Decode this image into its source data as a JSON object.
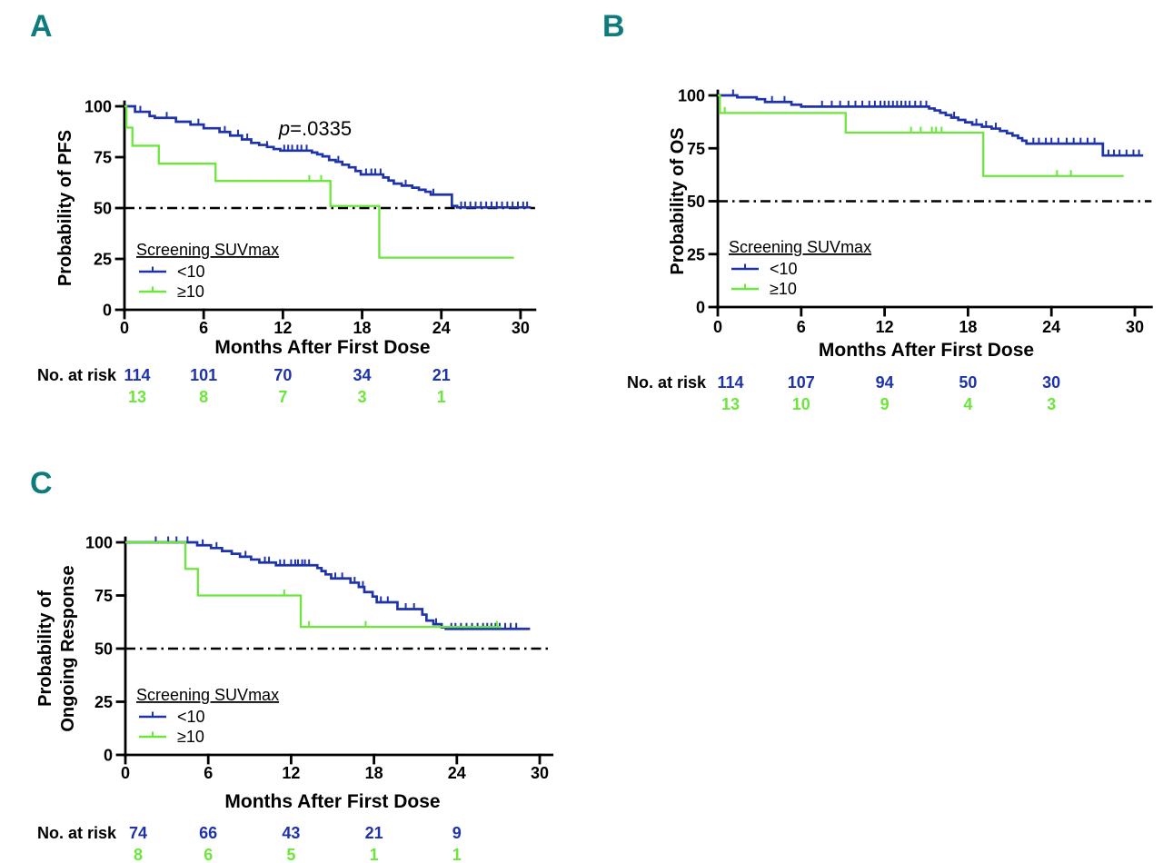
{
  "colors": {
    "blue": "#1e32aa",
    "green": "#6be63a",
    "teal": "#0e7b7d",
    "black": "#000000"
  },
  "chart_data": [
    {
      "panel_label": "A",
      "type": "line",
      "km_style": true,
      "ylabel_lines": [
        "Probability of PFS"
      ],
      "xlabel": "Months After First Dose",
      "xticks": [
        0,
        6,
        12,
        18,
        24,
        30
      ],
      "yticks": [
        0,
        25,
        50,
        75,
        100
      ],
      "xlim": [
        0,
        31
      ],
      "ylim": [
        0,
        100
      ],
      "reference_line_y": 50,
      "grid": false,
      "annotation": {
        "italic": "p",
        "rest": "=.0335"
      },
      "legend": {
        "title": "Screening SUVmax",
        "items": [
          {
            "label": "<10",
            "color_key": "blue"
          },
          {
            "label": "≥10",
            "color_key": "green"
          }
        ]
      },
      "series": [
        {
          "name": "<10",
          "color_key": "blue",
          "steps": [
            [
              0,
              100
            ],
            [
              0.8,
              97.3
            ],
            [
              1.9,
              95.2
            ],
            [
              2.3,
              94.3
            ],
            [
              3.9,
              92.4
            ],
            [
              5.0,
              91.0
            ],
            [
              6.0,
              89.2
            ],
            [
              7.2,
              87.4
            ],
            [
              8.0,
              85.6
            ],
            [
              8.9,
              83.7
            ],
            [
              9.6,
              82.0
            ],
            [
              10.2,
              81.0
            ],
            [
              10.8,
              80.0
            ],
            [
              11.3,
              79.0
            ],
            [
              11.8,
              78.2
            ],
            [
              14.2,
              77.3
            ],
            [
              14.6,
              76.4
            ],
            [
              15.0,
              75.4
            ],
            [
              15.5,
              73.6
            ],
            [
              16.0,
              72.7
            ],
            [
              16.5,
              71.3
            ],
            [
              17.0,
              70.0
            ],
            [
              17.5,
              68.2
            ],
            [
              17.9,
              66.5
            ],
            [
              19.6,
              65.0
            ],
            [
              20.0,
              63.5
            ],
            [
              20.4,
              62.0
            ],
            [
              21.0,
              61.0
            ],
            [
              21.8,
              60.0
            ],
            [
              22.3,
              59.0
            ],
            [
              22.8,
              58.0
            ],
            [
              23.2,
              56.6
            ],
            [
              24.8,
              51.0
            ],
            [
              25.2,
              50.3
            ]
          ],
          "end": 30.8,
          "censors": [
            1.2,
            3.2,
            5.6,
            7.6,
            8.6,
            9.3,
            10.8,
            12.1,
            12.4,
            12.7,
            13.1,
            13.4,
            13.8,
            16.2,
            18.3,
            18.7,
            19.0,
            19.4,
            21.3,
            23.4,
            25.5,
            25.8,
            26.2,
            26.6,
            27.0,
            27.4,
            27.8,
            28.2,
            28.6,
            29.0,
            29.4,
            29.8,
            30.2,
            30.5
          ]
        },
        {
          "name": "≥10",
          "color_key": "green",
          "steps": [
            [
              0,
              100
            ],
            [
              0.15,
              89.5
            ],
            [
              0.6,
              80.6
            ],
            [
              2.6,
              71.8
            ],
            [
              6.9,
              63.3
            ],
            [
              15.6,
              51.0
            ],
            [
              19.3,
              25.6
            ]
          ],
          "end": 29.5,
          "censors": [
            14.0,
            14.9
          ]
        }
      ],
      "risk_table": {
        "label": "No. at risk",
        "times": [
          0,
          6,
          12,
          18,
          24
        ],
        "rows": [
          {
            "color_key": "blue",
            "values": [
              "114",
              "101",
              "70",
              "34",
              "21"
            ]
          },
          {
            "color_key": "green",
            "values": [
              "13",
              "8",
              "7",
              "3",
              "1"
            ]
          }
        ]
      }
    },
    {
      "panel_label": "B",
      "type": "line",
      "km_style": true,
      "ylabel_lines": [
        "Probability of OS"
      ],
      "xlabel": "Months After First Dose",
      "xticks": [
        0,
        6,
        12,
        18,
        24,
        30
      ],
      "yticks": [
        0,
        25,
        50,
        75,
        100
      ],
      "xlim": [
        0,
        31
      ],
      "ylim": [
        0,
        100
      ],
      "reference_line_y": 50,
      "grid": false,
      "legend": {
        "title": "Screening SUVmax",
        "items": [
          {
            "label": "<10",
            "color_key": "blue"
          },
          {
            "label": "≥10",
            "color_key": "green"
          }
        ]
      },
      "series": [
        {
          "name": "<10",
          "color_key": "blue",
          "steps": [
            [
              0,
              100
            ],
            [
              1.4,
              99.1
            ],
            [
              2.8,
              98.2
            ],
            [
              3.4,
              96.9
            ],
            [
              5.3,
              95.6
            ],
            [
              6.0,
              94.7
            ],
            [
              15.2,
              93.8
            ],
            [
              15.6,
              92.9
            ],
            [
              16.0,
              91.8
            ],
            [
              16.4,
              90.7
            ],
            [
              16.8,
              89.5
            ],
            [
              17.3,
              88.4
            ],
            [
              17.8,
              87.3
            ],
            [
              18.3,
              86.2
            ],
            [
              19.0,
              85.2
            ],
            [
              19.7,
              84.3
            ],
            [
              20.3,
              83.2
            ],
            [
              20.8,
              82.1
            ],
            [
              21.2,
              81.0
            ],
            [
              21.6,
              79.8
            ],
            [
              21.9,
              78.6
            ],
            [
              22.2,
              77.2
            ],
            [
              27.7,
              71.6
            ]
          ],
          "end": 30.6,
          "censors": [
            1.1,
            3.9,
            4.8,
            7.5,
            8.2,
            8.8,
            9.4,
            9.9,
            10.4,
            10.9,
            11.3,
            11.7,
            12.0,
            12.3,
            12.6,
            12.9,
            13.2,
            13.5,
            13.8,
            14.2,
            14.6,
            15.0,
            17.0,
            18.6,
            19.3,
            20.0,
            22.7,
            23.1,
            23.6,
            24.0,
            24.5,
            25.1,
            25.6,
            26.1,
            26.6,
            27.1,
            28.1,
            28.5,
            28.9,
            29.4,
            29.9,
            30.3
          ]
        },
        {
          "name": "≥10",
          "color_key": "green",
          "steps": [
            [
              0,
              100
            ],
            [
              0.15,
              91.7
            ],
            [
              9.2,
              82.4
            ],
            [
              19.1,
              61.9
            ]
          ],
          "end": 29.2,
          "censors": [
            0.5,
            13.9,
            14.6,
            15.4,
            15.7,
            16.1,
            24.4,
            25.4
          ]
        }
      ],
      "risk_table": {
        "label": "No. at risk",
        "times": [
          0,
          6,
          12,
          18,
          24
        ],
        "rows": [
          {
            "color_key": "blue",
            "values": [
              "114",
              "107",
              "94",
              "50",
              "30"
            ]
          },
          {
            "color_key": "green",
            "values": [
              "13",
              "10",
              "9",
              "4",
              "3"
            ]
          }
        ]
      }
    },
    {
      "panel_label": "C",
      "type": "line",
      "km_style": true,
      "ylabel_lines": [
        "Probability of",
        "Ongoing  Response"
      ],
      "xlabel": "Months After First Dose",
      "xticks": [
        0,
        6,
        12,
        18,
        24,
        30
      ],
      "yticks": [
        0,
        25,
        50,
        75,
        100
      ],
      "xlim": [
        0,
        31
      ],
      "ylim": [
        0,
        100
      ],
      "reference_line_y": 50,
      "grid": false,
      "legend": {
        "title": "Screening SUVmax",
        "items": [
          {
            "label": "<10",
            "color_key": "blue"
          },
          {
            "label": "≥10",
            "color_key": "green"
          }
        ]
      },
      "series": [
        {
          "name": "<10",
          "color_key": "blue",
          "steps": [
            [
              0,
              100
            ],
            [
              5.2,
              98.6
            ],
            [
              6.2,
              97.3
            ],
            [
              7.0,
              95.9
            ],
            [
              7.7,
              94.6
            ],
            [
              8.3,
              93.2
            ],
            [
              9.1,
              91.9
            ],
            [
              9.7,
              90.5
            ],
            [
              10.9,
              89.2
            ],
            [
              13.9,
              87.9
            ],
            [
              14.2,
              86.5
            ],
            [
              14.5,
              84.9
            ],
            [
              14.9,
              83.0
            ],
            [
              16.3,
              81.0
            ],
            [
              16.9,
              79.0
            ],
            [
              17.3,
              76.6
            ],
            [
              17.9,
              74.5
            ],
            [
              18.2,
              71.8
            ],
            [
              19.7,
              68.6
            ],
            [
              21.5,
              66.0
            ],
            [
              21.8,
              63.2
            ],
            [
              22.3,
              61.5
            ],
            [
              22.9,
              60.0
            ],
            [
              23.2,
              59.3
            ]
          ],
          "end": 29.3,
          "censors": [
            2.2,
            3.1,
            3.7,
            4.5,
            5.6,
            6.6,
            8.7,
            10.1,
            10.4,
            11.2,
            11.5,
            12.0,
            12.3,
            12.5,
            12.8,
            13.0,
            13.3,
            15.2,
            15.7,
            16.6,
            17.2,
            18.5,
            19.0,
            20.3,
            20.9,
            22.5,
            23.6,
            23.9,
            24.3,
            24.7,
            25.1,
            25.5,
            25.9,
            26.2,
            26.5,
            26.8,
            27.1,
            27.5,
            27.9,
            28.3
          ]
        },
        {
          "name": "≥10",
          "color_key": "green",
          "steps": [
            [
              0,
              100
            ],
            [
              4.35,
              87.5
            ],
            [
              5.25,
              75.0
            ],
            [
              12.7,
              60.2
            ]
          ],
          "end": 27.2,
          "censors": [
            11.5,
            13.3,
            17.4,
            26.9
          ]
        }
      ],
      "risk_table": {
        "label": "No. at risk",
        "times": [
          0,
          6,
          12,
          18,
          24
        ],
        "rows": [
          {
            "color_key": "blue",
            "values": [
              "74",
              "66",
              "43",
              "21",
              "9"
            ]
          },
          {
            "color_key": "green",
            "values": [
              "8",
              "6",
              "5",
              "1",
              "1"
            ]
          }
        ]
      }
    }
  ]
}
